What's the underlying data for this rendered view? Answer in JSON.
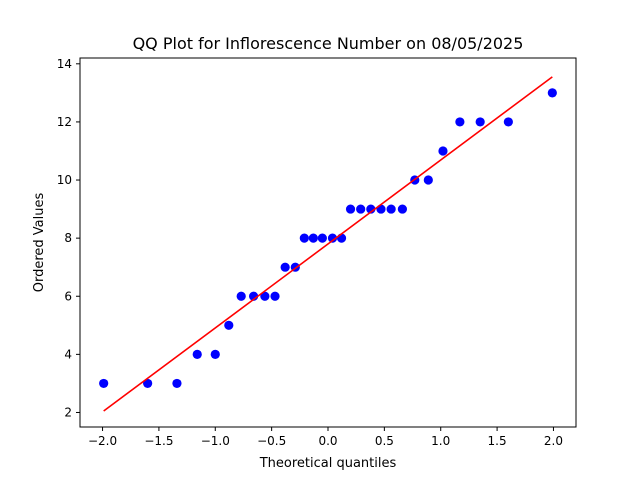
{
  "chart_data": {
    "type": "scatter",
    "title": "QQ Plot for Inflorescence Number on 08/05/2025",
    "xlabel": "Theoretical quantiles",
    "ylabel": "Ordered Values",
    "xlim": [
      -2.2,
      2.2
    ],
    "ylim": [
      1.5,
      14.2
    ],
    "x_ticks": [
      -2.0,
      -1.5,
      -1.0,
      -0.5,
      0.0,
      0.5,
      1.0,
      1.5,
      2.0
    ],
    "x_tick_labels": [
      "−2.0",
      "−1.5",
      "−1.0",
      "−0.5",
      "0.0",
      "0.5",
      "1.0",
      "1.5",
      "2.0"
    ],
    "y_ticks": [
      2,
      4,
      6,
      8,
      10,
      12,
      14
    ],
    "y_tick_labels": [
      "2",
      "4",
      "6",
      "8",
      "10",
      "12",
      "14"
    ],
    "grid": false,
    "series": [
      {
        "type": "scatter",
        "color": "#0000ff",
        "x": [
          -1.99,
          -1.6,
          -1.34,
          -1.16,
          -1.0,
          -0.88,
          -0.77,
          -0.66,
          -0.56,
          -0.47,
          -0.38,
          -0.29,
          -0.21,
          -0.13,
          -0.05,
          0.04,
          0.12,
          0.2,
          0.29,
          0.38,
          0.47,
          0.56,
          0.66,
          0.77,
          0.89,
          1.02,
          1.17,
          1.35,
          1.6,
          1.99
        ],
        "y": [
          3,
          3,
          3,
          4,
          4,
          5,
          6,
          6,
          6,
          6,
          7,
          7,
          8,
          8,
          8,
          8,
          8,
          9,
          9,
          9,
          9,
          9,
          9,
          10,
          10,
          11,
          12,
          12,
          12,
          13
        ]
      },
      {
        "type": "line",
        "color": "#ff0000",
        "x": [
          -1.99,
          1.99
        ],
        "y": [
          2.05,
          13.55
        ]
      }
    ]
  }
}
